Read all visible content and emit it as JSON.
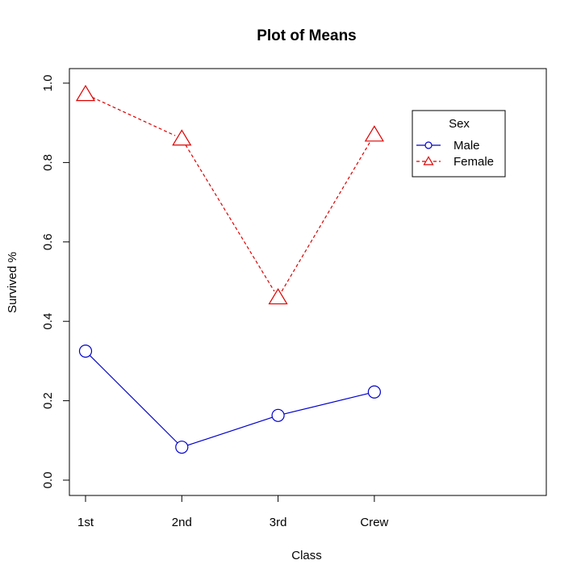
{
  "chart_data": {
    "type": "line",
    "title": "Plot of Means",
    "xlabel": "Class",
    "ylabel": "Survived %",
    "categories": [
      "1st",
      "2nd",
      "3rd",
      "Crew"
    ],
    "ylim": [
      0,
      1
    ],
    "yticks": [
      "0.0",
      "0.2",
      "0.4",
      "0.6",
      "0.8",
      "1.0"
    ],
    "grid": false,
    "legend": {
      "title": "Sex",
      "placement": "top-right"
    },
    "series": [
      {
        "name": "Male",
        "values": [
          0.325,
          0.083,
          0.163,
          0.222
        ],
        "color": "#0000cc",
        "marker": "circle",
        "line": "solid"
      },
      {
        "name": "Female",
        "values": [
          0.972,
          0.86,
          0.46,
          0.87
        ],
        "color": "#dd0000",
        "marker": "triangle",
        "line": "dashed"
      }
    ]
  }
}
